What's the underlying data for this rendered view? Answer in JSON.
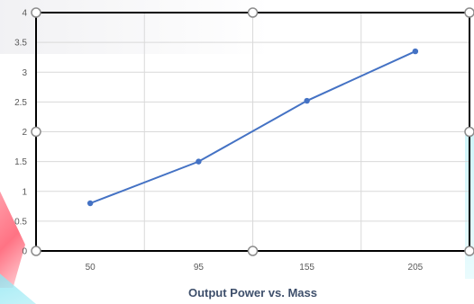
{
  "chart_data": {
    "type": "line",
    "title": "Output Power vs. Mass",
    "categories": [
      "50",
      "95",
      "155",
      "205"
    ],
    "series": [
      {
        "values": [
          0.8,
          1.5,
          2.52,
          3.35
        ]
      }
    ],
    "ylim": [
      0,
      4
    ],
    "yticks": [
      "0",
      "0.5",
      "1",
      "1.5",
      "2",
      "2.5",
      "3",
      "3.5",
      "4"
    ],
    "grid": true,
    "colors": {
      "line": "#4472c4",
      "grid": "#d9d9d9",
      "frame": "#000000"
    }
  }
}
